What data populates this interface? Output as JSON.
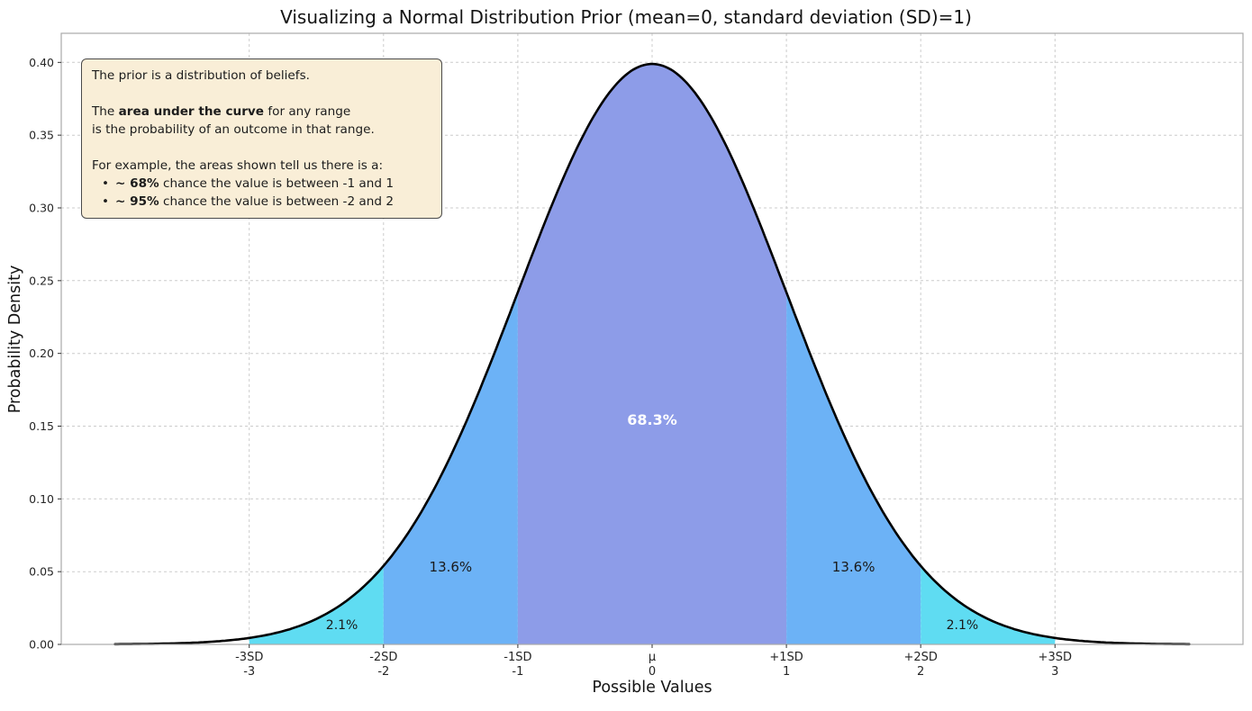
{
  "annotation": {
    "intro": "The prior is a distribution of beliefs.",
    "area_pre": "The ",
    "area_bold": "area under the curve",
    "area_post": " for any range",
    "area_line2": "is the probability of an outcome in that range.",
    "example_intro": "For example, the areas shown tell us there is a:",
    "bullet_glyph": "•",
    "bullets": [
      {
        "bold": "~ 68%",
        "text": " chance the value is between -1 and 1"
      },
      {
        "bold": "~ 95%",
        "text": " chance the value is between -2 and 2"
      }
    ]
  },
  "chart_data": {
    "type": "area",
    "title": "Visualizing a Normal Distribution Prior (mean=0, standard deviation (SD)=1)",
    "xlabel": "Possible Values",
    "ylabel": "Probability Density",
    "xlim": [
      -4.4,
      4.4
    ],
    "ylim": [
      0,
      0.42
    ],
    "grid": true,
    "legend": "none",
    "curve": {
      "distribution": "normal",
      "mean": 0,
      "sd": 1,
      "x_range": [
        -4,
        4
      ],
      "peak_density": 0.3989,
      "color": "#000000"
    },
    "colors": {
      "grid": "#cccccc",
      "frame": "#a9a9a9",
      "tick": "#333333",
      "tick_label": "#262626"
    },
    "y_ticks": [
      "0.00",
      "0.05",
      "0.10",
      "0.15",
      "0.20",
      "0.25",
      "0.30",
      "0.35",
      "0.40"
    ],
    "x_ticks": [
      {
        "x": -3,
        "line1": "-3SD",
        "line2": "-3"
      },
      {
        "x": -2,
        "line1": "-2SD",
        "line2": "-2"
      },
      {
        "x": -1,
        "line1": "-1SD",
        "line2": "-1"
      },
      {
        "x": 0,
        "line1": "μ",
        "line2": "0"
      },
      {
        "x": 1,
        "line1": "+1SD",
        "line2": "1"
      },
      {
        "x": 2,
        "line1": "+2SD",
        "line2": "2"
      },
      {
        "x": 3,
        "line1": "+3SD",
        "line2": "3"
      }
    ],
    "regions": [
      {
        "name": "minus3-to-minus2",
        "from": -3,
        "to": -2,
        "probability": "2.1%",
        "color": "#5fdcf2"
      },
      {
        "name": "minus2-to-minus1",
        "from": -2,
        "to": -1,
        "probability": "13.6%",
        "color": "#6cb2f6"
      },
      {
        "name": "minus1-to-plus1",
        "from": -1,
        "to": 1,
        "probability": "68.3%",
        "color": "#8d9ce8"
      },
      {
        "name": "plus1-to-plus2",
        "from": 1,
        "to": 2,
        "probability": "13.6%",
        "color": "#6cb2f6"
      },
      {
        "name": "plus2-to-plus3",
        "from": 2,
        "to": 3,
        "probability": "2.1%",
        "color": "#5fdcf2"
      }
    ],
    "labels": [
      {
        "text": "68.3%",
        "x": 0,
        "y": 0.151,
        "color": "#ffffff",
        "bold": true,
        "size": 16
      },
      {
        "text": "13.6%",
        "x": -1.5,
        "y": 0.05,
        "color": "#1a1a1a",
        "bold": false,
        "size": 15
      },
      {
        "text": "13.6%",
        "x": 1.5,
        "y": 0.05,
        "color": "#1a1a1a",
        "bold": false,
        "size": 15
      },
      {
        "text": "2.1%",
        "x": -2.31,
        "y": 0.0105,
        "color": "#1a1a1a",
        "bold": false,
        "size": 14
      },
      {
        "text": "2.1%",
        "x": 2.31,
        "y": 0.0105,
        "color": "#1a1a1a",
        "bold": false,
        "size": 14
      }
    ]
  }
}
